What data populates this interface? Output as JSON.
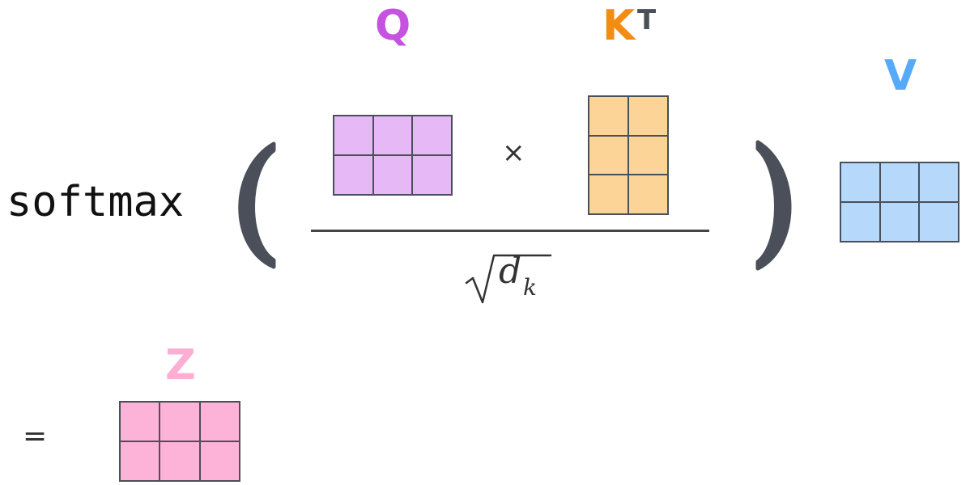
{
  "formula": {
    "function_name": "softmax",
    "multiply_sign": "×",
    "equals_sign": "=",
    "denominator": {
      "variable": "d",
      "subscript": "k"
    }
  },
  "matrices": {
    "q": {
      "label": "Q",
      "rows": 2,
      "cols": 3,
      "color": "#e6b8f5",
      "label_color": "#c552e0"
    },
    "k": {
      "label": "K",
      "superscript": "T",
      "rows": 3,
      "cols": 2,
      "color": "#fdd497",
      "label_color": "#f48c14",
      "superscript_color": "#4a4f59"
    },
    "v": {
      "label": "V",
      "rows": 2,
      "cols": 3,
      "color": "#b6d8fb",
      "label_color": "#56aaf9"
    },
    "z": {
      "label": "Z",
      "rows": 2,
      "cols": 3,
      "color": "#fdb3d7",
      "label_color": "#fcaed3"
    }
  },
  "colors": {
    "grid_line": "#4a4f59",
    "paren": "#4a4f59",
    "fraction_line": "#444444"
  }
}
